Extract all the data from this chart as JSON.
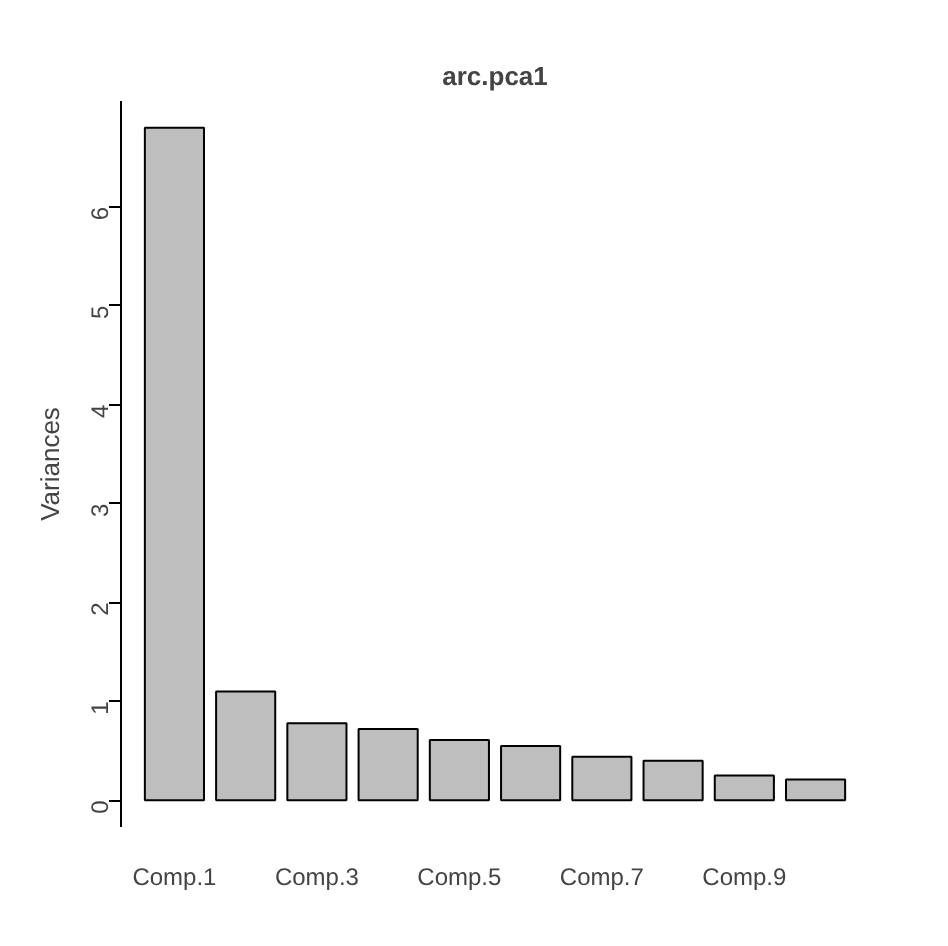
{
  "chart_data": {
    "type": "bar",
    "title": "arc.pca1",
    "ylabel": "Variances",
    "categories": [
      "Comp.1",
      null,
      "Comp.3",
      null,
      "Comp.5",
      null,
      "Comp.7",
      null,
      "Comp.9",
      null
    ],
    "values": [
      6.8,
      1.1,
      0.78,
      0.72,
      0.61,
      0.55,
      0.44,
      0.4,
      0.25,
      0.21
    ],
    "color": "#bebebe",
    "ylim": [
      -0.27,
      7.07
    ],
    "yticks": [
      0,
      1,
      2,
      3,
      4,
      5,
      6
    ],
    "grid": false
  }
}
